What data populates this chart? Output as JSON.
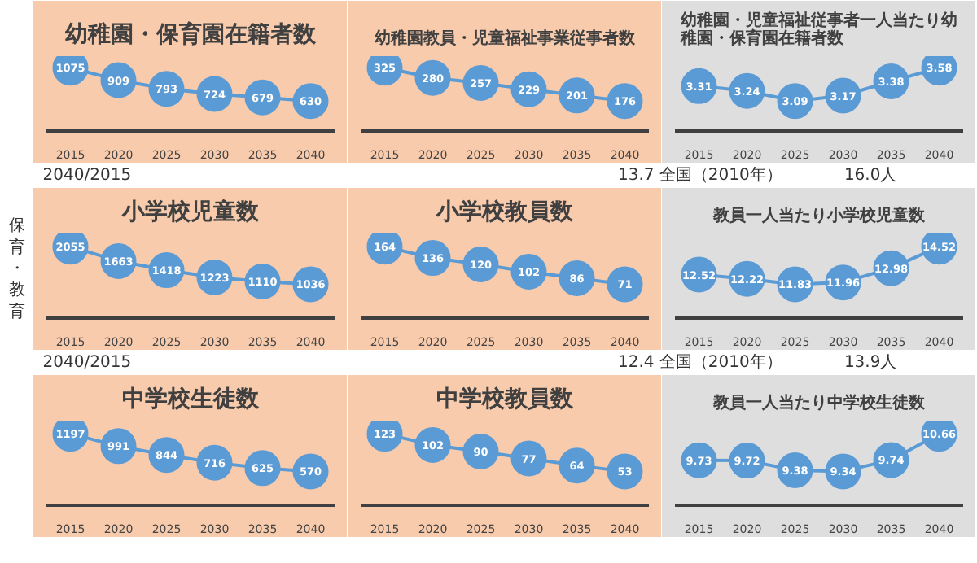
{
  "chart_data": [
    {
      "type": "line",
      "title": "幼稚園・保育園在籍者数",
      "categories": [
        "2015",
        "2020",
        "2025",
        "2030",
        "2035",
        "2040"
      ],
      "series": [
        {
          "color": "#5b9bd5",
          "values": [
            1075,
            909,
            793,
            724,
            679,
            630
          ]
        }
      ],
      "data_labels": true,
      "marker": "circle",
      "tick_labels": "x"
    },
    {
      "type": "line",
      "title": "幼稚園教員・児童福祉事業従事者数",
      "categories": [
        "2015",
        "2020",
        "2025",
        "2030",
        "2035",
        "2040"
      ],
      "series": [
        {
          "color": "#5b9bd5",
          "values": [
            325,
            280,
            257,
            229,
            201,
            176
          ]
        }
      ],
      "data_labels": true,
      "marker": "circle",
      "tick_labels": "x"
    },
    {
      "type": "line",
      "title": "幼稚園・児童福祉従事者一人当たり幼稚園・保育園在籍者数",
      "categories": [
        "2015",
        "2020",
        "2025",
        "2030",
        "2035",
        "2040"
      ],
      "series": [
        {
          "color": "#5b9bd5",
          "values": [
            3.31,
            3.24,
            3.09,
            3.17,
            3.38,
            3.58
          ]
        }
      ],
      "data_labels": true,
      "marker": "circle",
      "tick_labels": "x"
    },
    {
      "type": "line",
      "title": "小学校児童数",
      "categories": [
        "2015",
        "2020",
        "2025",
        "2030",
        "2035",
        "2040"
      ],
      "series": [
        {
          "color": "#5b9bd5",
          "values": [
            2055,
            1663,
            1418,
            1223,
            1110,
            1036
          ]
        }
      ],
      "data_labels": true,
      "marker": "circle",
      "tick_labels": "x"
    },
    {
      "type": "line",
      "title": "小学校教員数",
      "categories": [
        "2015",
        "2020",
        "2025",
        "2030",
        "2035",
        "2040"
      ],
      "series": [
        {
          "color": "#5b9bd5",
          "values": [
            164,
            136,
            120,
            102,
            86,
            71
          ]
        }
      ],
      "data_labels": true,
      "marker": "circle",
      "tick_labels": "x"
    },
    {
      "type": "line",
      "title": "教員一人当たり小学校児童数",
      "categories": [
        "2015",
        "2020",
        "2025",
        "2030",
        "2035",
        "2040"
      ],
      "series": [
        {
          "color": "#5b9bd5",
          "values": [
            12.52,
            12.22,
            11.83,
            11.96,
            12.98,
            14.52
          ]
        }
      ],
      "data_labels": true,
      "marker": "circle",
      "tick_labels": "x"
    },
    {
      "type": "line",
      "title": "中学校生徒数",
      "categories": [
        "2015",
        "2020",
        "2025",
        "2030",
        "2035",
        "2040"
      ],
      "series": [
        {
          "color": "#5b9bd5",
          "values": [
            1197,
            991,
            844,
            716,
            625,
            570
          ]
        }
      ],
      "data_labels": true,
      "marker": "circle",
      "tick_labels": "x"
    },
    {
      "type": "line",
      "title": "中学校教員数",
      "categories": [
        "2015",
        "2020",
        "2025",
        "2030",
        "2035",
        "2040"
      ],
      "series": [
        {
          "color": "#5b9bd5",
          "values": [
            123,
            102,
            90,
            77,
            64,
            53
          ]
        }
      ],
      "data_labels": true,
      "marker": "circle",
      "tick_labels": "x"
    },
    {
      "type": "line",
      "title": "教員一人当たり中学校生徒数",
      "categories": [
        "2015",
        "2020",
        "2025",
        "2030",
        "2035",
        "2040"
      ],
      "series": [
        {
          "color": "#5b9bd5",
          "values": [
            9.73,
            9.72,
            9.38,
            9.34,
            9.74,
            10.66
          ]
        }
      ],
      "data_labels": true,
      "marker": "circle",
      "tick_labels": "x"
    },
    {
      "type": "other",
      "annotations": [
        "保育・教育",
        "2040/2015",
        "13.7 全国（2010年）",
        "16.0人",
        "2040/2015",
        "12.4 全国（2010年）",
        "13.9人"
      ]
    }
  ]
}
